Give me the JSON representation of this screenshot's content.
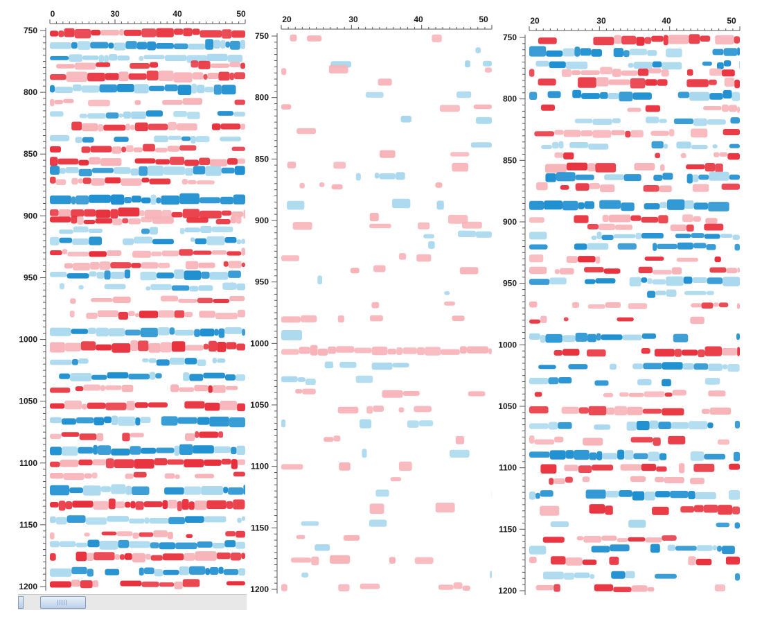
{
  "panels": [
    {
      "id": "left",
      "x_ticks": [
        "0",
        "30",
        "40",
        "50"
      ],
      "y_ticks": [
        "750",
        "800",
        "850",
        "900",
        "950",
        "1000",
        "1050",
        "1100",
        "1150",
        "1200"
      ],
      "density": "full"
    },
    {
      "id": "middle",
      "x_ticks": [
        "20",
        "30",
        "40",
        "50"
      ],
      "y_ticks": [
        "750",
        "800",
        "850",
        "900",
        "950",
        "1000",
        "1050",
        "1100",
        "1150",
        "1200"
      ],
      "density": "sparse"
    },
    {
      "id": "right",
      "x_ticks": [
        "20",
        "30",
        "40",
        "50"
      ],
      "y_ticks": [
        "750",
        "800",
        "850",
        "900",
        "950",
        "1000",
        "1050",
        "1100",
        "1150",
        "1200"
      ],
      "density": "medium"
    }
  ],
  "colors": {
    "red_strong": "#e8303c",
    "red_light": "#f7b3b8",
    "blue_strong": "#1e8fd0",
    "blue_light": "#a9d8ee",
    "axis": "#555555"
  },
  "icons": {
    "scrollbar_grip": "grip-icon"
  }
}
